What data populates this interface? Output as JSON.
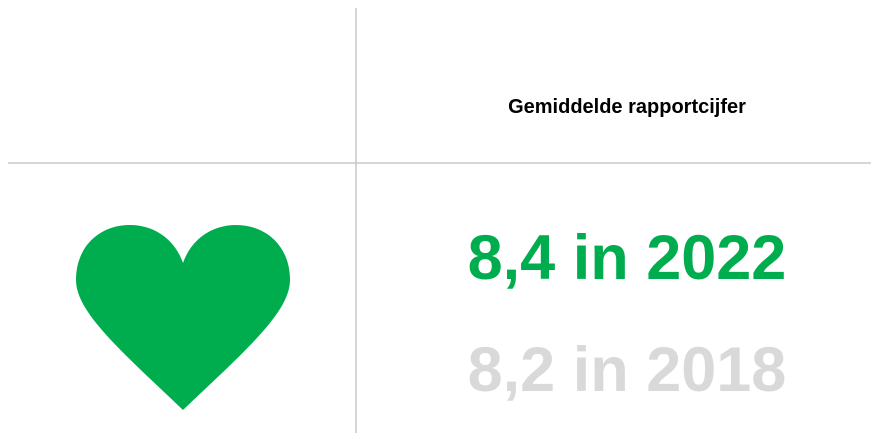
{
  "header": {
    "title": "Gemiddelde rapportcijfer"
  },
  "current": {
    "text": "8,4 in 2022"
  },
  "previous": {
    "text": "8,2 in 2018"
  }
}
